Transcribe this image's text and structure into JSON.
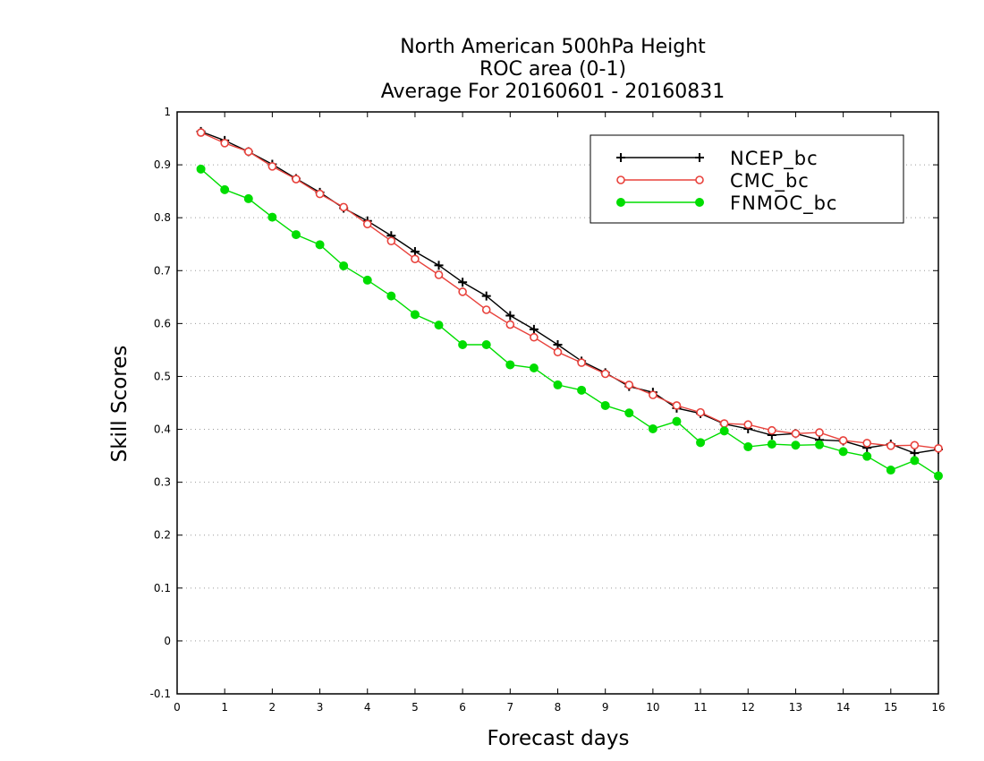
{
  "chart_data": {
    "type": "line",
    "title_lines": [
      "North American 500hPa Height",
      "ROC area (0-1)",
      "Average For 20160601 - 20160831"
    ],
    "xlabel": "Forecast days",
    "ylabel": "Skill Scores",
    "xlim": [
      0,
      16
    ],
    "ylim": [
      -0.1,
      1
    ],
    "x_ticks": [
      "0",
      "1",
      "2",
      "3",
      "4",
      "5",
      "6",
      "7",
      "8",
      "9",
      "10",
      "11",
      "12",
      "13",
      "14",
      "15",
      "16"
    ],
    "y_ticks": [
      "-0.1",
      "0",
      "0.1",
      "0.2",
      "0.3",
      "0.4",
      "0.5",
      "0.6",
      "0.7",
      "0.8",
      "0.9",
      "1"
    ],
    "grid": "horizontal dotted",
    "legend_position": "top-right",
    "x": [
      0.5,
      1,
      1.5,
      2,
      2.5,
      3,
      3.5,
      4,
      4.5,
      5,
      5.5,
      6,
      6.5,
      7,
      7.5,
      8,
      8.5,
      9,
      9.5,
      10,
      10.5,
      11,
      11.5,
      12,
      12.5,
      13,
      13.5,
      14,
      14.5,
      15,
      15.5,
      16
    ],
    "series": [
      {
        "name": "NCEP_bc",
        "color": "#000000",
        "marker": "plus",
        "values": [
          0.963,
          0.946,
          0.925,
          0.901,
          0.874,
          0.848,
          0.818,
          0.794,
          0.766,
          0.736,
          0.71,
          0.678,
          0.652,
          0.615,
          0.589,
          0.56,
          0.529,
          0.507,
          0.481,
          0.47,
          0.44,
          0.43,
          0.41,
          0.401,
          0.389,
          0.392,
          0.38,
          0.378,
          0.365,
          0.372,
          0.355,
          0.362
        ]
      },
      {
        "name": "CMC_bc",
        "color": "#e8423c",
        "marker": "open-circle",
        "values": [
          0.961,
          0.941,
          0.925,
          0.897,
          0.873,
          0.845,
          0.82,
          0.788,
          0.756,
          0.722,
          0.692,
          0.66,
          0.626,
          0.598,
          0.574,
          0.546,
          0.526,
          0.505,
          0.484,
          0.465,
          0.445,
          0.432,
          0.411,
          0.409,
          0.398,
          0.392,
          0.394,
          0.379,
          0.374,
          0.369,
          0.37,
          0.364
        ]
      },
      {
        "name": "FNMOC_bc",
        "color": "#00dd00",
        "marker": "filled-circle",
        "values": [
          0.892,
          0.853,
          0.836,
          0.801,
          0.768,
          0.749,
          0.709,
          0.682,
          0.652,
          0.617,
          0.597,
          0.56,
          0.56,
          0.522,
          0.516,
          0.484,
          0.474,
          0.445,
          0.431,
          0.401,
          0.415,
          0.375,
          0.397,
          0.367,
          0.372,
          0.37,
          0.371,
          0.358,
          0.349,
          0.323,
          0.341,
          0.312
        ]
      }
    ]
  }
}
